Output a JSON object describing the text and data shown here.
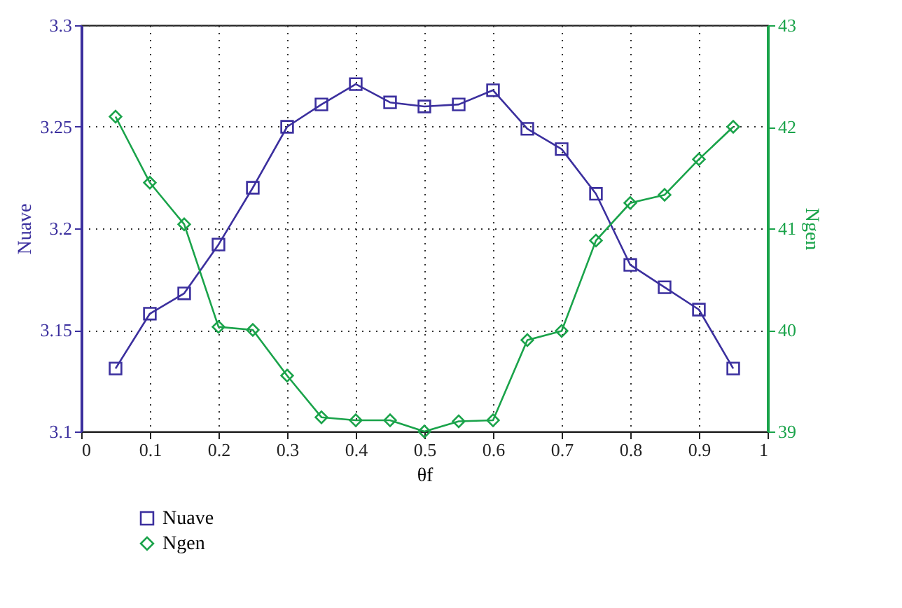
{
  "chart_data": {
    "type": "line",
    "xlabel": "θf",
    "ylabel": "Nuave",
    "y2label": "Ngen",
    "x": [
      0.05,
      0.1,
      0.15,
      0.2,
      0.25,
      0.3,
      0.35,
      0.4,
      0.45,
      0.5,
      0.55,
      0.6,
      0.65,
      0.7,
      0.75,
      0.8,
      0.85,
      0.9,
      0.95
    ],
    "series": [
      {
        "name": "Nuave",
        "color": "#3b2f9e",
        "marker": "square",
        "values": [
          3.131,
          3.158,
          3.168,
          3.192,
          3.22,
          3.25,
          3.261,
          3.271,
          3.262,
          3.26,
          3.261,
          3.268,
          3.249,
          3.239,
          3.217,
          3.182,
          3.171,
          3.16,
          3.131
        ]
      },
      {
        "name": "Ngen",
        "color": "#1aa34a",
        "marker": "diamond",
        "axis": "y2",
        "values": [
          42.1,
          41.45,
          41.04,
          40.03,
          40.0,
          39.55,
          39.14,
          39.11,
          39.11,
          39.0,
          39.1,
          39.11,
          39.9,
          39.99,
          40.88,
          41.25,
          41.33,
          41.68,
          42.0
        ]
      }
    ],
    "xlim": [
      0,
      1
    ],
    "xticks": [
      0,
      0.1,
      0.2,
      0.3,
      0.4,
      0.5,
      0.6,
      0.7,
      0.8,
      0.9,
      1
    ],
    "ylim": [
      3.1,
      3.3
    ],
    "yticks": [
      3.1,
      3.15,
      3.2,
      3.25,
      3.3
    ],
    "y2lim": [
      39,
      43
    ],
    "y2ticks": [
      39,
      40,
      41,
      42,
      43
    ],
    "grid": true,
    "legend": "bottom left",
    "line_style": "solid"
  }
}
